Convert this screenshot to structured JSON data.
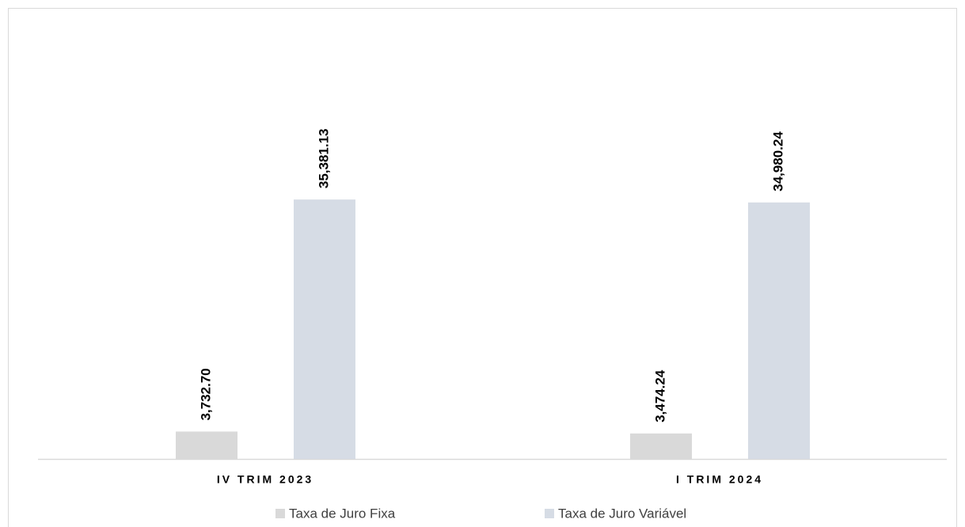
{
  "chart_data": {
    "type": "bar",
    "categories": [
      "IV TRIM 2023",
      "I TRIM 2024"
    ],
    "series": [
      {
        "name": "Taxa de Juro Fixa",
        "color": "#d9d9d9",
        "values": [
          3732.7,
          3474.24
        ],
        "value_labels": [
          "3,732.70",
          "3,474.24"
        ]
      },
      {
        "name": "Taxa de Juro Variável",
        "color": "#d6dce5",
        "values": [
          35381.13,
          34980.24
        ],
        "value_labels": [
          "35,381.13",
          "34,980.24"
        ]
      }
    ],
    "ylim": [
      0,
      60000
    ]
  }
}
